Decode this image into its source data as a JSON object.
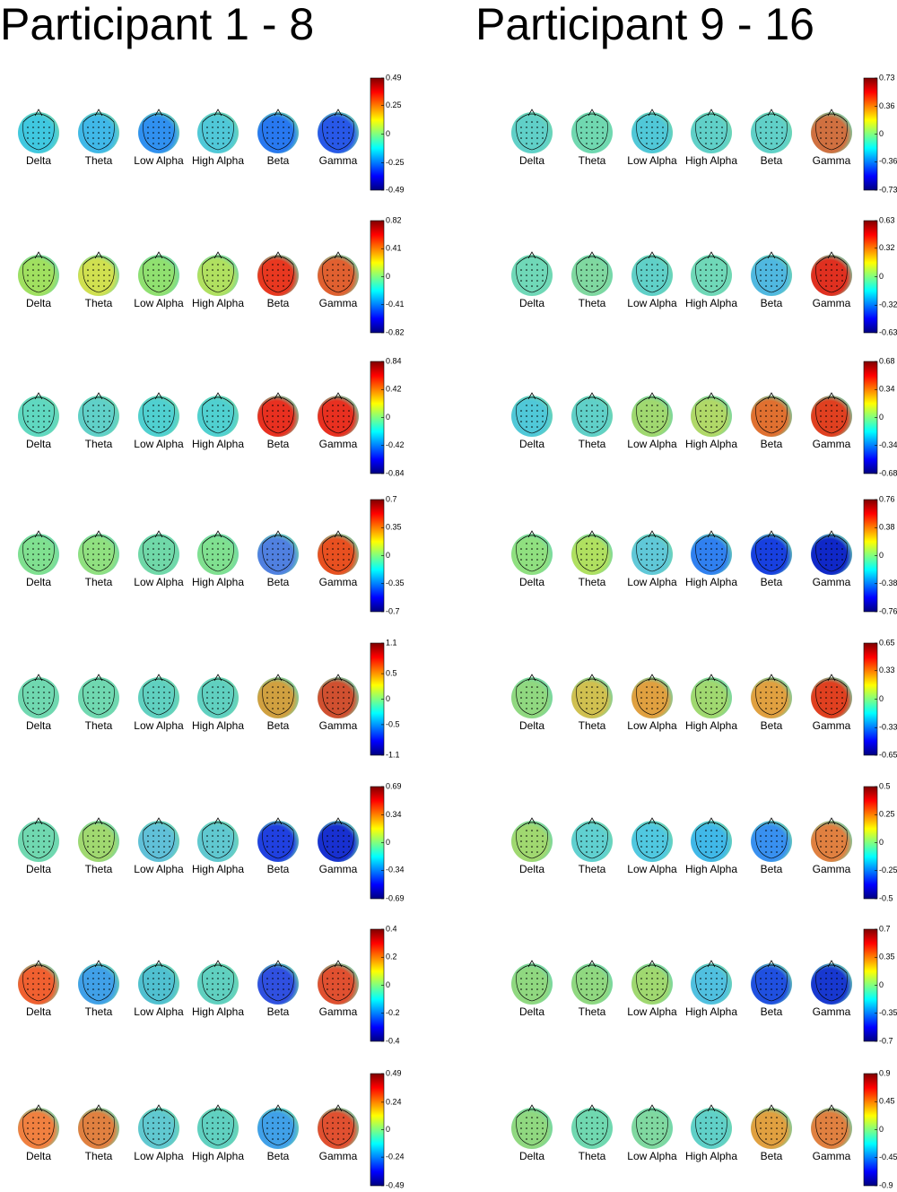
{
  "bands": [
    "Delta",
    "Theta",
    "Low Alpha",
    "High Alpha",
    "Beta",
    "Gamma"
  ],
  "panels": [
    {
      "title": "Participant 1 - 8",
      "rows": [
        {
          "ticks": [
            0.49,
            0.25,
            0,
            -0.25,
            -0.49
          ],
          "map_colors": [
            "#40c8e0",
            "#40b8e8",
            "#3090f0",
            "#50c8d8",
            "#2878f0",
            "#2858e8"
          ]
        },
        {
          "ticks": [
            0.82,
            0.41,
            0,
            -0.41,
            -0.82
          ],
          "map_colors": [
            "#a0e060",
            "#d0e050",
            "#90e070",
            "#b0e060",
            "#e83820",
            "#e06030"
          ]
        },
        {
          "ticks": [
            0.84,
            0.42,
            0,
            -0.42,
            -0.84
          ],
          "map_colors": [
            "#60d8c0",
            "#60d0c8",
            "#50d0d0",
            "#50d0d0",
            "#e83020",
            "#e83020"
          ]
        },
        {
          "ticks": [
            0.7,
            0.35,
            0,
            -0.35,
            -0.7
          ],
          "map_colors": [
            "#80e090",
            "#90e080",
            "#70d8a8",
            "#80e090",
            "#5080e0",
            "#e85020"
          ]
        },
        {
          "ticks": [
            1.1,
            0.5,
            0,
            -0.5,
            -1.1
          ],
          "map_colors": [
            "#70d8b0",
            "#70d8b0",
            "#60d0c0",
            "#60d0c0",
            "#d0a040",
            "#d05030"
          ]
        },
        {
          "ticks": [
            0.69,
            0.34,
            0,
            -0.34,
            -0.69
          ],
          "map_colors": [
            "#70d8b0",
            "#a0d870",
            "#60c0d8",
            "#60c8d0",
            "#2040e0",
            "#1830d0"
          ]
        },
        {
          "ticks": [
            0.4,
            0.2,
            0,
            -0.2,
            -0.4
          ],
          "map_colors": [
            "#f06030",
            "#40a0e8",
            "#50c0d0",
            "#60d0c0",
            "#3050e0",
            "#e05030"
          ]
        },
        {
          "ticks": [
            0.49,
            0.24,
            0,
            -0.24,
            -0.49
          ],
          "map_colors": [
            "#f08040",
            "#e08040",
            "#60c8d0",
            "#60d0c0",
            "#40a0e8",
            "#e05030"
          ]
        }
      ]
    },
    {
      "title": "Participant 9 - 16",
      "rows": [
        {
          "ticks": [
            0.73,
            0.36,
            0,
            -0.36,
            -0.73
          ],
          "map_colors": [
            "#60d0c8",
            "#70d8b0",
            "#50c8d8",
            "#60d0c8",
            "#60d0c8",
            "#d07040"
          ]
        },
        {
          "ticks": [
            0.63,
            0.32,
            0,
            -0.32,
            -0.63
          ],
          "map_colors": [
            "#70d8b8",
            "#80d8a0",
            "#60d0c8",
            "#70d8b8",
            "#50b8e0",
            "#e03020"
          ]
        },
        {
          "ticks": [
            0.68,
            0.34,
            0,
            -0.34,
            -0.68
          ],
          "map_colors": [
            "#50c8d8",
            "#60d0c8",
            "#a0d870",
            "#b0d868",
            "#e07030",
            "#e04020"
          ]
        },
        {
          "ticks": [
            0.76,
            0.38,
            0,
            -0.38,
            -0.76
          ],
          "map_colors": [
            "#90e080",
            "#b0e060",
            "#60c8d8",
            "#3080f0",
            "#1840e0",
            "#1028c8"
          ]
        },
        {
          "ticks": [
            0.65,
            0.33,
            0,
            -0.33,
            -0.65
          ],
          "map_colors": [
            "#90d880",
            "#d0c050",
            "#e0a040",
            "#a0d870",
            "#e0a040",
            "#e04020"
          ]
        },
        {
          "ticks": [
            0.5,
            0.25,
            0,
            -0.25,
            -0.5
          ],
          "map_colors": [
            "#a0d870",
            "#60d0d0",
            "#50c8e0",
            "#40b8e8",
            "#3890f0",
            "#e08040"
          ]
        },
        {
          "ticks": [
            0.7,
            0.35,
            0,
            -0.35,
            -0.7
          ],
          "map_colors": [
            "#90d880",
            "#90d880",
            "#a0d870",
            "#50c0e0",
            "#2050e0",
            "#1838d0"
          ]
        },
        {
          "ticks": [
            0.9,
            0.45,
            0,
            -0.45,
            -0.9
          ],
          "map_colors": [
            "#90d880",
            "#70d8b0",
            "#80d8a0",
            "#60d0c8",
            "#e0a040",
            "#e08040"
          ]
        }
      ]
    }
  ]
}
